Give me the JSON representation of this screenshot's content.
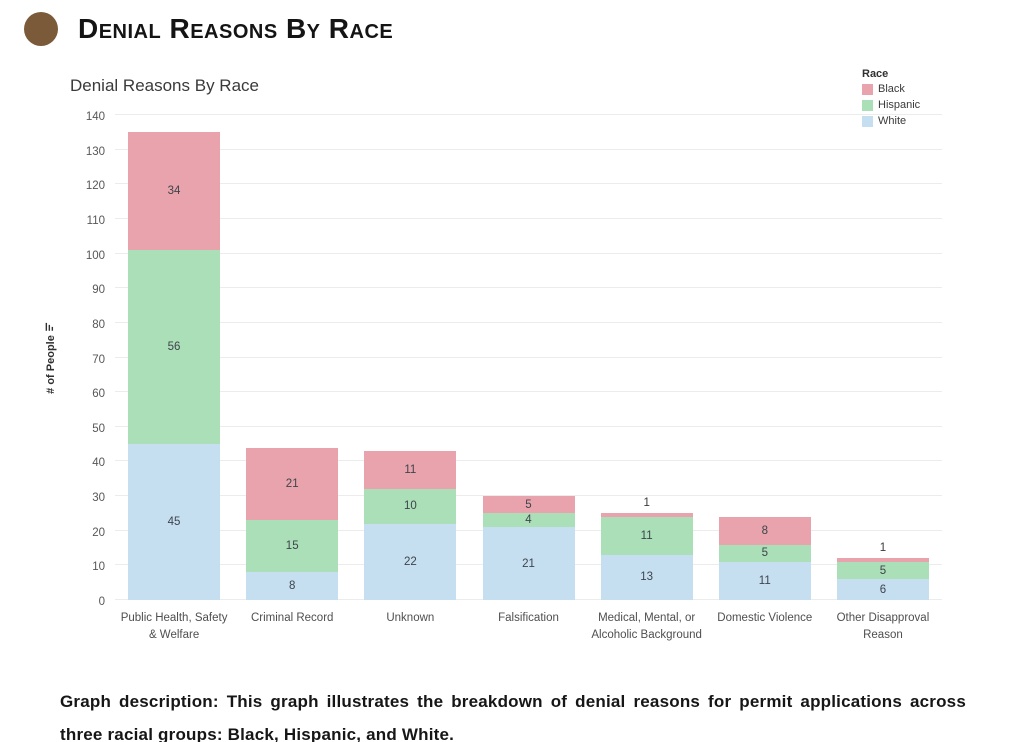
{
  "header": {
    "title": "Denial Reasons By Race"
  },
  "chart_data": {
    "type": "bar",
    "stacked": true,
    "title": "Denial Reasons By Race",
    "ylabel": "# of People",
    "ylim": [
      0,
      140
    ],
    "ytick_step": 10,
    "grid": true,
    "categories": [
      "Public Health, Safety\n& Welfare",
      "Criminal Record",
      "Unknown",
      "Falsification",
      "Medical, Mental, or\nAlcoholic Background",
      "Domestic Violence",
      "Other Disapproval\nReason"
    ],
    "series": [
      {
        "name": "White",
        "color": "#c5dff1",
        "values": [
          45,
          8,
          22,
          21,
          13,
          11,
          6
        ]
      },
      {
        "name": "Hispanic",
        "color": "#abdfb8",
        "values": [
          56,
          15,
          10,
          4,
          11,
          5,
          5
        ]
      },
      {
        "name": "Black",
        "color": "#e9a3ac",
        "values": [
          34,
          21,
          11,
          5,
          1,
          8,
          1
        ]
      }
    ],
    "totals": [
      135,
      44,
      43,
      30,
      25,
      24,
      12
    ],
    "legend": {
      "title": "Race",
      "position": "top-right",
      "order": [
        "Black",
        "Hispanic",
        "White"
      ]
    }
  },
  "description": {
    "text": "Graph description: This graph illustrates the breakdown of denial reasons for permit applications across three racial groups: Black, Hispanic, and White."
  },
  "colors": {
    "bullet": "#7a5a38"
  }
}
